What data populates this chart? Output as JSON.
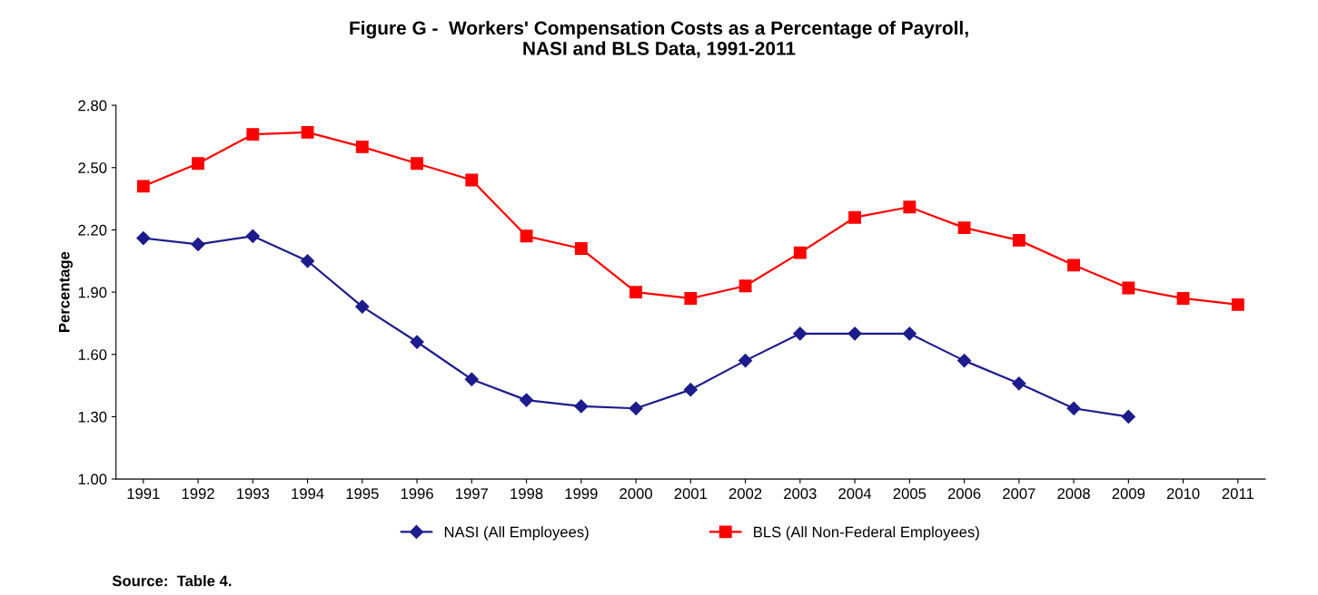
{
  "chart_data": {
    "type": "line",
    "title": "Figure G -  Workers' Compensation Costs as a Percentage of Payroll,\nNASI and BLS Data, 1991-2011",
    "ylabel": "Percentage",
    "categories": [
      "1991",
      "1992",
      "1993",
      "1994",
      "1995",
      "1996",
      "1997",
      "1998",
      "1999",
      "2000",
      "2001",
      "2002",
      "2003",
      "2004",
      "2005",
      "2006",
      "2007",
      "2008",
      "2009",
      "2010",
      "2011"
    ],
    "series": [
      {
        "name": "NASI (All Employees)",
        "color": "#1c1c8c",
        "marker": "diamond",
        "values": [
          2.16,
          2.13,
          2.17,
          2.05,
          1.83,
          1.66,
          1.48,
          1.38,
          1.35,
          1.34,
          1.43,
          1.57,
          1.7,
          1.7,
          1.7,
          1.57,
          1.46,
          1.34,
          1.3,
          null,
          null
        ]
      },
      {
        "name": "BLS (All Non-Federal Employees)",
        "color": "#ff0000",
        "marker": "square",
        "values": [
          2.41,
          2.52,
          2.66,
          2.67,
          2.6,
          2.52,
          2.44,
          2.17,
          2.11,
          1.9,
          1.87,
          1.93,
          2.09,
          2.26,
          2.31,
          2.21,
          2.15,
          2.03,
          1.92,
          1.87,
          1.84
        ]
      }
    ],
    "ylim": [
      1.0,
      2.8
    ],
    "yticks": [
      {
        "value": 1.0,
        "label": "1.00"
      },
      {
        "value": 1.3,
        "label": "1.30"
      },
      {
        "value": 1.6,
        "label": "1.60"
      },
      {
        "value": 1.9,
        "label": "1.90"
      },
      {
        "value": 2.2,
        "label": "2.20"
      },
      {
        "value": 2.5,
        "label": "2.50"
      },
      {
        "value": 2.8,
        "label": "2.80"
      }
    ],
    "grid": false,
    "legend": "bottom",
    "line_style": "solid",
    "annotations": [
      "Source:  Table 4."
    ]
  }
}
